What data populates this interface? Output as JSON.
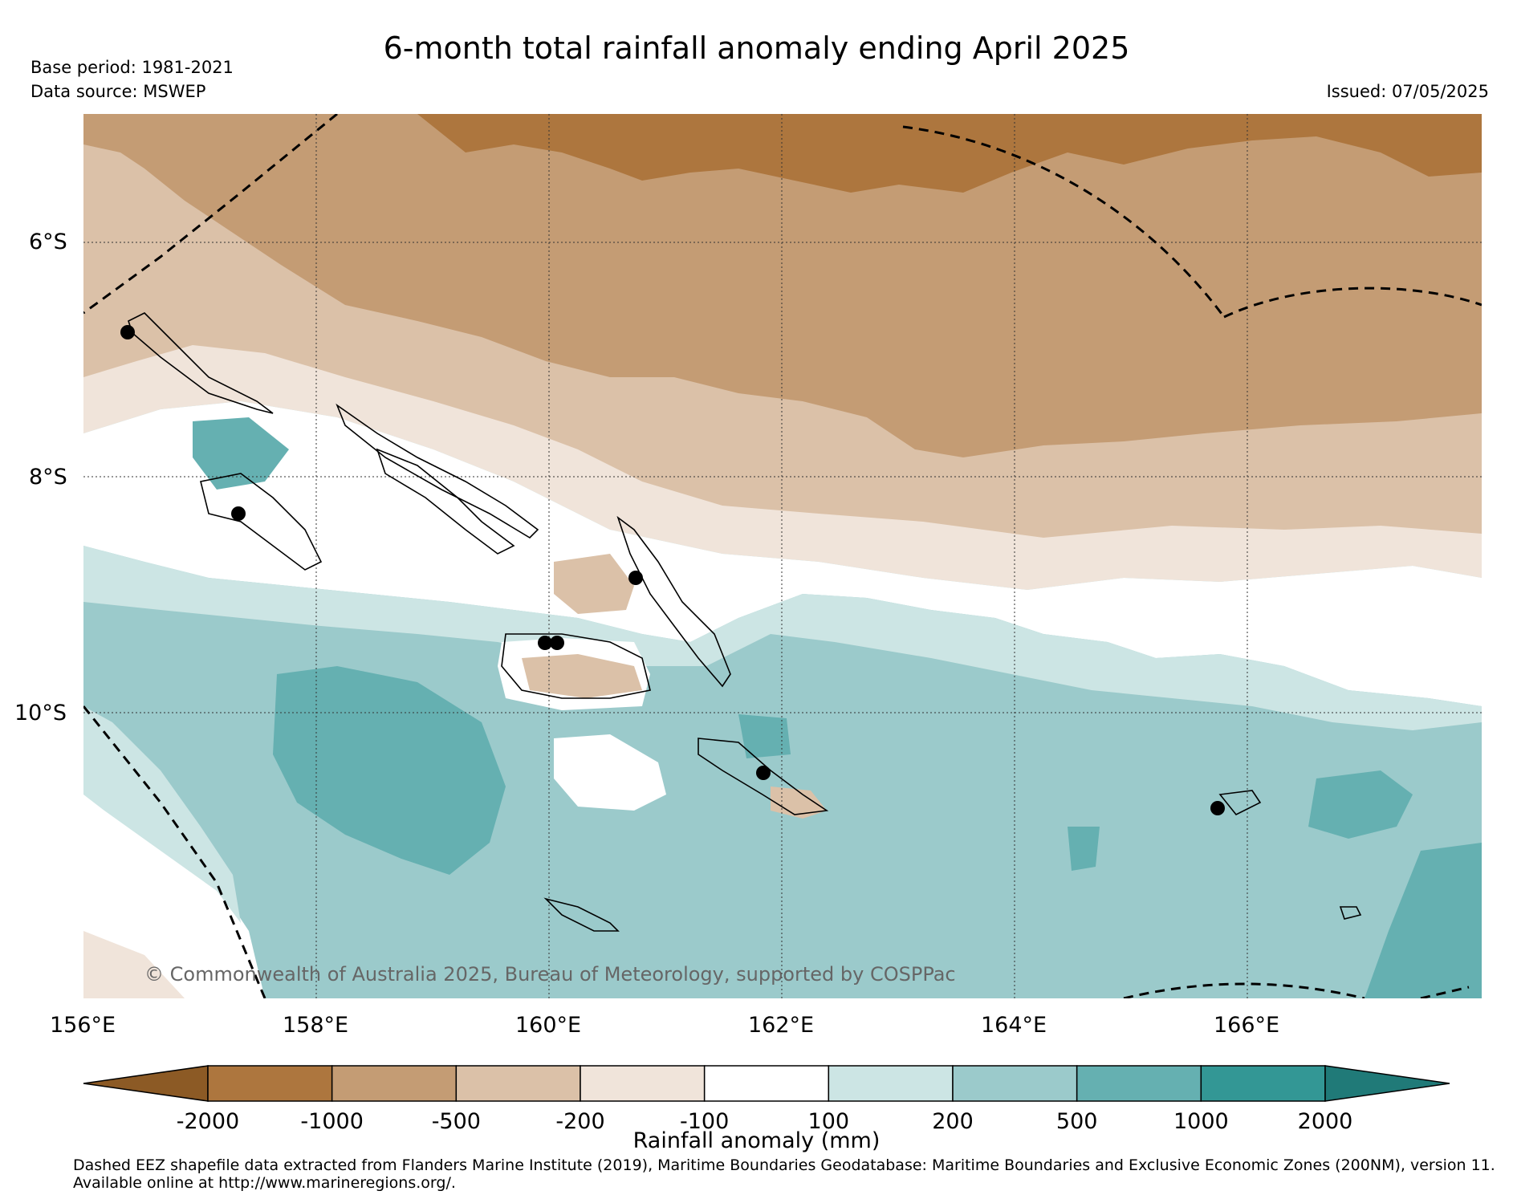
{
  "title": "6-month total rainfall anomaly ending April 2025",
  "base_period": "Base period: 1981-2021",
  "data_source": "Data source: MSWEP",
  "issued": "Issued: 07/05/2025",
  "copyright": "© Commonwealth of Australia 2025, Bureau of Meteorology, supported by COSPPac",
  "lat_labels": [
    "6°S",
    "8°S",
    "10°S"
  ],
  "lon_labels": [
    "156°E",
    "158°E",
    "160°E",
    "162°E",
    "164°E",
    "166°E"
  ],
  "colorbar": {
    "label": "Rainfall anomaly (mm)",
    "ticks": [
      "-2000",
      "-1000",
      "-500",
      "-200",
      "-100",
      "100",
      "200",
      "500",
      "1000",
      "2000"
    ],
    "colors": [
      "#8c5a25",
      "#ad763e",
      "#c49c74",
      "#dbc1a8",
      "#f0e4da",
      "#ffffff",
      "#cce5e4",
      "#9bcacb",
      "#65b0b1",
      "#339795",
      "#207a78"
    ]
  },
  "footer": {
    "line1": "Dashed EEZ shapefile data extracted from Flanders Marine Institute (2019), Maritime Boundaries Geodatabase: Maritime Boundaries and Exclusive Economic Zones (200NM), version 11.",
    "line2": "Available online at http://www.marineregions.org/."
  }
}
